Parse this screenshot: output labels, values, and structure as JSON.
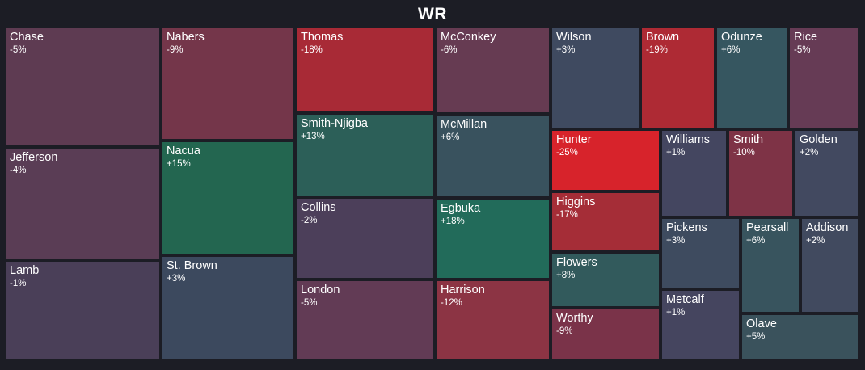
{
  "chart_data": {
    "type": "treemap",
    "title": "WR",
    "cells": [
      {
        "name": "Chase",
        "change": "-5%",
        "value": -5,
        "color": "#5e3b52"
      },
      {
        "name": "Jefferson",
        "change": "-4%",
        "value": -4,
        "color": "#5a3d55"
      },
      {
        "name": "Lamb",
        "change": "-1%",
        "value": -1,
        "color": "#4a3f58"
      },
      {
        "name": "Nabers",
        "change": "-9%",
        "value": -9,
        "color": "#74364a"
      },
      {
        "name": "Nacua",
        "change": "+15%",
        "value": 15,
        "color": "#236650"
      },
      {
        "name": "St. Brown",
        "change": "+3%",
        "value": 3,
        "color": "#3c495e"
      },
      {
        "name": "Thomas",
        "change": "-18%",
        "value": -18,
        "color": "#a82a36"
      },
      {
        "name": "Smith-Njigba",
        "change": "+13%",
        "value": 13,
        "color": "#2c5f58"
      },
      {
        "name": "Collins",
        "change": "-2%",
        "value": -2,
        "color": "#4c3f5a"
      },
      {
        "name": "London",
        "change": "-5%",
        "value": -5,
        "color": "#623b55"
      },
      {
        "name": "McConkey",
        "change": "-6%",
        "value": -6,
        "color": "#663b52"
      },
      {
        "name": "McMillan",
        "change": "+6%",
        "value": 6,
        "color": "#39525e"
      },
      {
        "name": "Egbuka",
        "change": "+18%",
        "value": 18,
        "color": "#226b5a"
      },
      {
        "name": "Harrison",
        "change": "-12%",
        "value": -12,
        "color": "#8c3444"
      },
      {
        "name": "Wilson",
        "change": "+3%",
        "value": 3,
        "color": "#3f4a60"
      },
      {
        "name": "Brown",
        "change": "-19%",
        "value": -19,
        "color": "#ae2a34"
      },
      {
        "name": "Odunze",
        "change": "+6%",
        "value": 6,
        "color": "#365660"
      },
      {
        "name": "Rice",
        "change": "-5%",
        "value": -5,
        "color": "#663b55"
      },
      {
        "name": "Hunter",
        "change": "-25%",
        "value": -25,
        "color": "#d7232b"
      },
      {
        "name": "Higgins",
        "change": "-17%",
        "value": -17,
        "color": "#a52d37"
      },
      {
        "name": "Flowers",
        "change": "+8%",
        "value": 8,
        "color": "#325a5c"
      },
      {
        "name": "Worthy",
        "change": "-9%",
        "value": -9,
        "color": "#7a3349"
      },
      {
        "name": "Williams",
        "change": "+1%",
        "value": 1,
        "color": "#444660"
      },
      {
        "name": "Smith",
        "change": "-10%",
        "value": -10,
        "color": "#7e3346"
      },
      {
        "name": "Golden",
        "change": "+2%",
        "value": 2,
        "color": "#424960"
      },
      {
        "name": "Pickens",
        "change": "+3%",
        "value": 3,
        "color": "#3e4b5f"
      },
      {
        "name": "Pearsall",
        "change": "+6%",
        "value": 6,
        "color": "#38545e"
      },
      {
        "name": "Addison",
        "change": "+2%",
        "value": 2,
        "color": "#414a5f"
      },
      {
        "name": "Metcalf",
        "change": "+1%",
        "value": 1,
        "color": "#45455f"
      },
      {
        "name": "Olave",
        "change": "+5%",
        "value": 5,
        "color": "#3a525c"
      }
    ]
  }
}
